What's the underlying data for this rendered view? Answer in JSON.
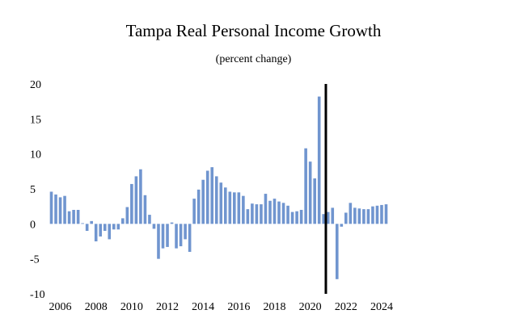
{
  "chart_data": {
    "type": "bar",
    "title": "Tampa Real Personal Income Growth",
    "subtitle": "(percent change)",
    "xlabel": "",
    "ylabel": "",
    "ylim": [
      -10,
      20
    ],
    "yticks": [
      20,
      15,
      10,
      5,
      0,
      -5,
      -10
    ],
    "xticks": [
      "2006",
      "2008",
      "2010",
      "2012",
      "2014",
      "2016",
      "2018",
      "2020",
      "2022",
      "2024"
    ],
    "grid": false,
    "legend": "none",
    "bar_color": "#7095cf",
    "forecast_line_color": "#000000",
    "forecast_divider_after": "2021Q2",
    "series": [
      {
        "x": [
          "2006Q1",
          "2006Q2",
          "2006Q3",
          "2006Q4",
          "2007Q1",
          "2007Q2",
          "2007Q3",
          "2007Q4",
          "2008Q1",
          "2008Q2",
          "2008Q3",
          "2008Q4",
          "2009Q1",
          "2009Q2",
          "2009Q3",
          "2009Q4",
          "2010Q1",
          "2010Q2",
          "2010Q3",
          "2010Q4",
          "2011Q1",
          "2011Q2",
          "2011Q3",
          "2011Q4",
          "2012Q1",
          "2012Q2",
          "2012Q3",
          "2012Q4",
          "2013Q1",
          "2013Q2",
          "2013Q3",
          "2013Q4",
          "2014Q1",
          "2014Q2",
          "2014Q3",
          "2014Q4",
          "2015Q1",
          "2015Q2",
          "2015Q3",
          "2015Q4",
          "2016Q1",
          "2016Q2",
          "2016Q3",
          "2016Q4",
          "2017Q1",
          "2017Q2",
          "2017Q3",
          "2017Q4",
          "2018Q1",
          "2018Q2",
          "2018Q3",
          "2018Q4",
          "2019Q1",
          "2019Q2",
          "2019Q3",
          "2019Q4",
          "2020Q1",
          "2020Q2",
          "2020Q3",
          "2020Q4",
          "2021Q1",
          "2021Q2",
          "2021Q3",
          "2021Q4",
          "2022Q1",
          "2022Q2",
          "2022Q3",
          "2022Q4",
          "2023Q1",
          "2023Q2",
          "2023Q3",
          "2023Q4",
          "2024Q1",
          "2024Q2",
          "2024Q3",
          "2024Q4"
        ],
        "values": [
          4.6,
          4.2,
          3.8,
          4.0,
          1.8,
          2.0,
          2.0,
          0.1,
          -1.0,
          0.4,
          -2.5,
          -1.8,
          -1.0,
          -2.2,
          -0.8,
          -0.8,
          0.8,
          2.4,
          5.7,
          6.8,
          7.8,
          4.1,
          1.3,
          -0.7,
          -5.0,
          -3.5,
          -3.3,
          0.2,
          -3.5,
          -3.2,
          -2.2,
          -4.0,
          3.6,
          4.9,
          6.3,
          7.6,
          8.1,
          6.8,
          5.9,
          5.2,
          4.6,
          4.5,
          4.5,
          4.0,
          2.1,
          2.9,
          2.8,
          2.8,
          4.3,
          3.3,
          3.6,
          3.2,
          3.0,
          2.6,
          1.7,
          1.8,
          2.0,
          10.8,
          8.9,
          6.5,
          18.2,
          1.4,
          1.7,
          2.3,
          -7.9,
          -0.4,
          1.6,
          3.0,
          2.3,
          2.2,
          2.1,
          2.1,
          2.5,
          2.6,
          2.7,
          2.8
        ]
      }
    ]
  }
}
